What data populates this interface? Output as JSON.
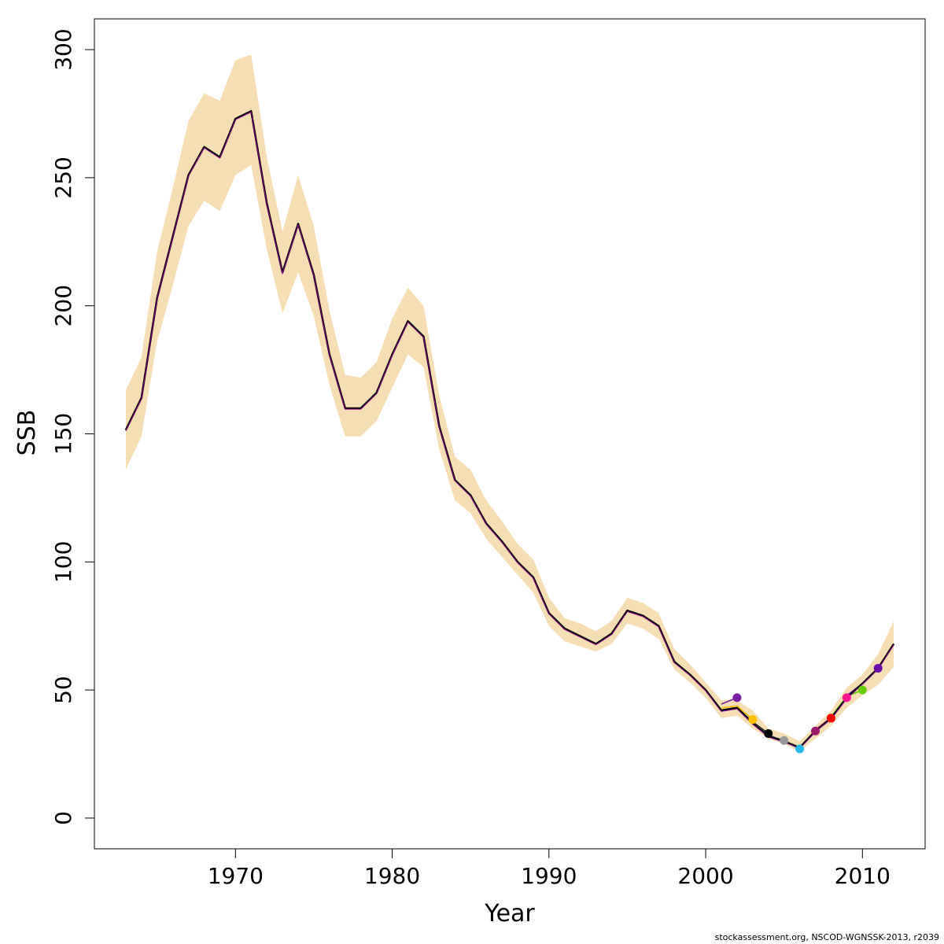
{
  "chart_data": {
    "type": "line",
    "xlabel": "Year",
    "ylabel": "SSB",
    "xlim": [
      1961.0,
      2014.0
    ],
    "ylim": [
      -12,
      312
    ],
    "x_ticks": [
      1970,
      1980,
      1990,
      2000,
      2010
    ],
    "y_ticks": [
      0,
      50,
      100,
      150,
      200,
      250,
      300
    ],
    "grid": false,
    "legend": "none",
    "colors": {
      "band": "#f5deb3",
      "main_line": "#000000",
      "retro_lines": "#8b008b"
    },
    "confidence_band": {
      "x": [
        1963,
        1964,
        1965,
        1966,
        1967,
        1968,
        1969,
        1970,
        1971,
        1972,
        1973,
        1974,
        1975,
        1976,
        1977,
        1978,
        1979,
        1980,
        1981,
        1982,
        1983,
        1984,
        1985,
        1986,
        1987,
        1988,
        1989,
        1990,
        1991,
        1992,
        1993,
        1994,
        1995,
        1996,
        1997,
        1998,
        1999,
        2000,
        2001,
        2002,
        2003,
        2004,
        2005,
        2006,
        2007,
        2008,
        2009,
        2010,
        2011,
        2012
      ],
      "lower": [
        136,
        149,
        186,
        208,
        231,
        241,
        237,
        251,
        255,
        222,
        197,
        213,
        196,
        169,
        149,
        149,
        155,
        168,
        181,
        176,
        144,
        124,
        119,
        109,
        102,
        95,
        88,
        75,
        69,
        67,
        65,
        68,
        76,
        74,
        70,
        58,
        53,
        47,
        39,
        40,
        35,
        31,
        29,
        26,
        31,
        36,
        43,
        48,
        52,
        59
      ],
      "upper": [
        167,
        180,
        221,
        246,
        272,
        283,
        280,
        296,
        298,
        258,
        229,
        251,
        231,
        198,
        173,
        172,
        178,
        195,
        207,
        200,
        165,
        141,
        136,
        124,
        116,
        107,
        101,
        86,
        78,
        76,
        73,
        77,
        86,
        84,
        80,
        66,
        60,
        53,
        46,
        46,
        42,
        35,
        33,
        30,
        36,
        42,
        51,
        56,
        64,
        77
      ]
    },
    "series": [
      {
        "x": [
          1963,
          1964,
          1965,
          1966,
          1967,
          1968,
          1969,
          1970,
          1971,
          1972,
          1973,
          1974,
          1975,
          1976,
          1977,
          1978,
          1979,
          1980,
          1981,
          1982,
          1983,
          1984,
          1985,
          1986,
          1987,
          1988,
          1989,
          1990,
          1991,
          1992,
          1993,
          1994,
          1995,
          1996,
          1997,
          1998,
          1999,
          2000,
          2001,
          2002,
          2003,
          2004,
          2005,
          2006,
          2007,
          2008,
          2009,
          2010,
          2011,
          2012
        ],
        "values": [
          151.5,
          164,
          203,
          227,
          251,
          262,
          258,
          273,
          276,
          240,
          213,
          232,
          212,
          181,
          160,
          160,
          166,
          181,
          194,
          188,
          153,
          132,
          126,
          115,
          108,
          100,
          94,
          80,
          74,
          71,
          68,
          72,
          81,
          79,
          75,
          61,
          56,
          50,
          42,
          43,
          37,
          32,
          30,
          27.5,
          34,
          39,
          47,
          52.5,
          58.5,
          68
        ],
        "color": "#000000"
      },
      {
        "x": [
          2001,
          2002
        ],
        "values": [
          44.5,
          47
        ],
        "color": "#7b1fa2"
      },
      {
        "x": [
          2001,
          2002,
          2003
        ],
        "values": [
          43,
          43.8,
          38.5
        ],
        "color": "#ffc000"
      },
      {
        "x": [
          2001,
          2002,
          2003,
          2004
        ],
        "values": [
          42.2,
          43.2,
          37.5,
          33
        ],
        "color": "#000000"
      },
      {
        "x": [
          2001,
          2002,
          2003,
          2004,
          2005
        ],
        "values": [
          42,
          43,
          37.2,
          32.5,
          30.3
        ],
        "color": "#999999"
      },
      {
        "x": [
          2001,
          2002,
          2003,
          2004,
          2005,
          2006
        ],
        "values": [
          41.8,
          42.8,
          37,
          32,
          30,
          27
        ],
        "color": "#27b8e5"
      },
      {
        "x": [
          2005,
          2006,
          2007
        ],
        "values": [
          30.2,
          27.3,
          34
        ],
        "color": "#9c1b6b"
      },
      {
        "x": [
          2006,
          2007,
          2008
        ],
        "values": [
          27.4,
          34.3,
          39
        ],
        "color": "#ff0000"
      },
      {
        "x": [
          2007,
          2008,
          2009
        ],
        "values": [
          34.4,
          39.3,
          47
        ],
        "color": "#ff1493"
      },
      {
        "x": [
          2008,
          2009,
          2010
        ],
        "values": [
          39.5,
          47.5,
          50
        ],
        "color": "#66cc00"
      },
      {
        "x": [
          2009,
          2010,
          2011
        ],
        "values": [
          47.8,
          52.5,
          58.5
        ],
        "color": "#6a0dad"
      }
    ],
    "terminal_points": [
      {
        "x": 2002,
        "y": 47,
        "color": "#7b1fa2"
      },
      {
        "x": 2003,
        "y": 38.5,
        "color": "#ffc000"
      },
      {
        "x": 2004,
        "y": 33,
        "color": "#000000"
      },
      {
        "x": 2005,
        "y": 30.3,
        "color": "#999999"
      },
      {
        "x": 2006,
        "y": 27,
        "color": "#27b8e5"
      },
      {
        "x": 2007,
        "y": 34,
        "color": "#9c1b6b"
      },
      {
        "x": 2008,
        "y": 39,
        "color": "#ff0000"
      },
      {
        "x": 2009,
        "y": 47,
        "color": "#ff1493"
      },
      {
        "x": 2010,
        "y": 50,
        "color": "#66cc00"
      },
      {
        "x": 2011,
        "y": 58.5,
        "color": "#6a0dad"
      }
    ]
  },
  "credit": "stockassessment.org, NSCOD-WGNSSK-2013, r2039"
}
